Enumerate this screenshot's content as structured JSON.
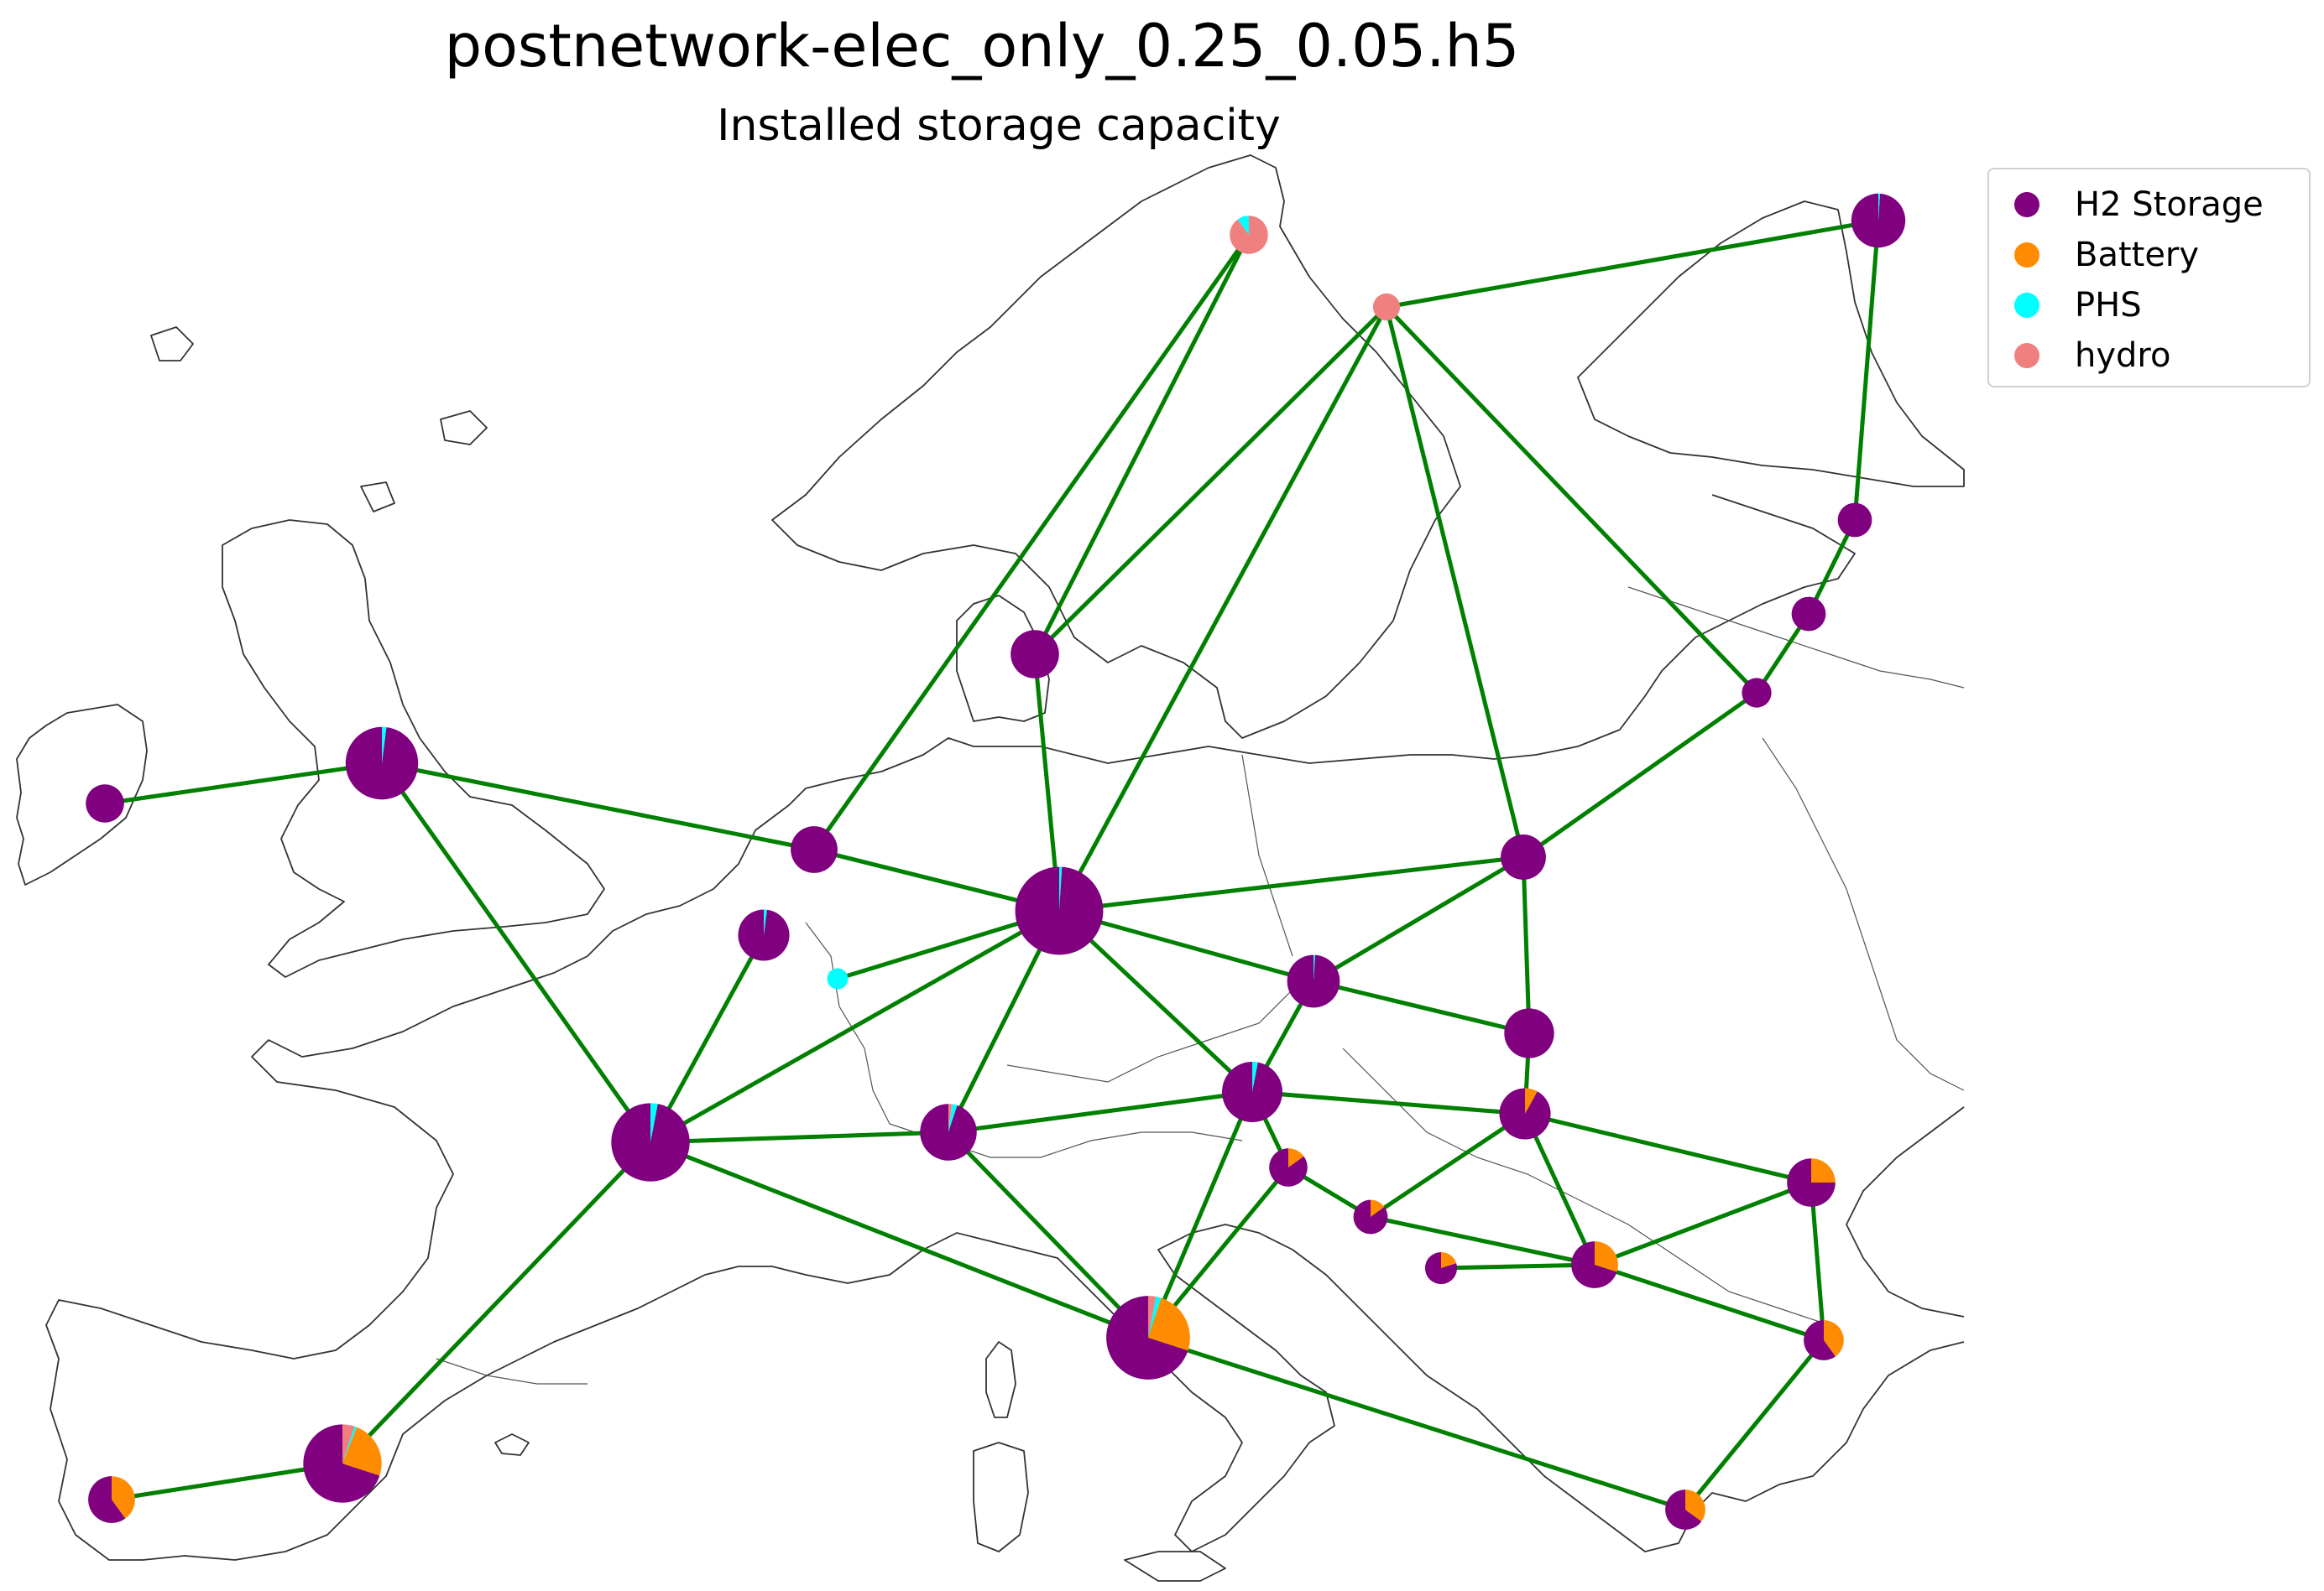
{
  "title": "postnetwork-elec_only_0.25_0.05.h5",
  "subtitle": "Installed storage capacity",
  "colors": {
    "h2": "#800080",
    "battery": "#FF8C00",
    "phs": "#00FFFF",
    "hydro": "#F08080",
    "line": "#008000",
    "coast": "#333333"
  },
  "legend": [
    {
      "label": "H2 Storage",
      "color": "#800080"
    },
    {
      "label": "Battery",
      "color": "#FF8C00"
    },
    {
      "label": "PHS",
      "color": "#00FFFF"
    },
    {
      "label": "hydro",
      "color": "#F08080"
    }
  ],
  "nodes": [
    {
      "id": "NO_N",
      "size": 0.1,
      "shares": {
        "h2": 0.0,
        "battery": 0.0,
        "phs": 0.1,
        "hydro": 0.9
      }
    },
    {
      "id": "SE",
      "size": 0.05,
      "shares": {
        "h2": 0.0,
        "battery": 0.0,
        "phs": 0.0,
        "hydro": 1.0
      }
    },
    {
      "id": "FI",
      "size": 0.2,
      "shares": {
        "h2": 0.99,
        "battery": 0.0,
        "phs": 0.01,
        "hydro": 0.0
      }
    },
    {
      "id": "EE",
      "size": 0.08,
      "shares": {
        "h2": 1.0,
        "battery": 0.0,
        "phs": 0.0,
        "hydro": 0.0
      }
    },
    {
      "id": "LV",
      "size": 0.08,
      "shares": {
        "h2": 1.0,
        "battery": 0.0,
        "phs": 0.0,
        "hydro": 0.0
      }
    },
    {
      "id": "LT",
      "size": 0.06,
      "shares": {
        "h2": 1.0,
        "battery": 0.0,
        "phs": 0.0,
        "hydro": 0.0
      }
    },
    {
      "id": "DK",
      "size": 0.16,
      "shares": {
        "h2": 1.0,
        "battery": 0.0,
        "phs": 0.0,
        "hydro": 0.0
      }
    },
    {
      "id": "IE",
      "size": 0.1,
      "shares": {
        "h2": 1.0,
        "battery": 0.0,
        "phs": 0.0,
        "hydro": 0.0
      }
    },
    {
      "id": "GB",
      "size": 0.36,
      "shares": {
        "h2": 0.98,
        "battery": 0.0,
        "phs": 0.02,
        "hydro": 0.0
      }
    },
    {
      "id": "NL",
      "size": 0.15,
      "shares": {
        "h2": 1.0,
        "battery": 0.0,
        "phs": 0.0,
        "hydro": 0.0
      }
    },
    {
      "id": "BE",
      "size": 0.18,
      "shares": {
        "h2": 0.98,
        "battery": 0.0,
        "phs": 0.02,
        "hydro": 0.0
      }
    },
    {
      "id": "LU",
      "size": 0.03,
      "shares": {
        "h2": 0.0,
        "battery": 0.0,
        "phs": 1.0,
        "hydro": 0.0
      }
    },
    {
      "id": "DE",
      "size": 0.53,
      "shares": {
        "h2": 0.99,
        "battery": 0.0,
        "phs": 0.01,
        "hydro": 0.0
      }
    },
    {
      "id": "PL",
      "size": 0.14,
      "shares": {
        "h2": 1.0,
        "battery": 0.0,
        "phs": 0.0,
        "hydro": 0.0
      }
    },
    {
      "id": "CZ",
      "size": 0.19,
      "shares": {
        "h2": 0.99,
        "battery": 0.0,
        "phs": 0.01,
        "hydro": 0.0
      }
    },
    {
      "id": "SK",
      "size": 0.17,
      "shares": {
        "h2": 1.0,
        "battery": 0.0,
        "phs": 0.0,
        "hydro": 0.0
      }
    },
    {
      "id": "AT",
      "size": 0.25,
      "shares": {
        "h2": 0.97,
        "battery": 0.0,
        "phs": 0.03,
        "hydro": 0.0
      }
    },
    {
      "id": "HU",
      "size": 0.18,
      "shares": {
        "h2": 0.92,
        "battery": 0.08,
        "phs": 0.0,
        "hydro": 0.0
      }
    },
    {
      "id": "FR",
      "size": 0.42,
      "shares": {
        "h2": 0.97,
        "battery": 0.0,
        "phs": 0.03,
        "hydro": 0.0
      }
    },
    {
      "id": "CH",
      "size": 0.22,
      "shares": {
        "h2": 0.95,
        "battery": 0.0,
        "phs": 0.03,
        "hydro": 0.02
      }
    },
    {
      "id": "SI",
      "size": 0.1,
      "shares": {
        "h2": 0.85,
        "battery": 0.15,
        "phs": 0.0,
        "hydro": 0.0
      }
    },
    {
      "id": "HR",
      "size": 0.08,
      "shares": {
        "h2": 0.85,
        "battery": 0.15,
        "phs": 0.0,
        "hydro": 0.0
      }
    },
    {
      "id": "BA",
      "size": 0.07,
      "shares": {
        "h2": 0.8,
        "battery": 0.2,
        "phs": 0.0,
        "hydro": 0.0
      }
    },
    {
      "id": "RS",
      "size": 0.15,
      "shares": {
        "h2": 0.7,
        "battery": 0.3,
        "phs": 0.0,
        "hydro": 0.0
      }
    },
    {
      "id": "RO",
      "size": 0.16,
      "shares": {
        "h2": 0.75,
        "battery": 0.25,
        "phs": 0.0,
        "hydro": 0.0
      }
    },
    {
      "id": "BG",
      "size": 0.11,
      "shares": {
        "h2": 0.6,
        "battery": 0.4,
        "phs": 0.0,
        "hydro": 0.0
      }
    },
    {
      "id": "GR",
      "size": 0.11,
      "shares": {
        "h2": 0.65,
        "battery": 0.35,
        "phs": 0.0,
        "hydro": 0.0
      }
    },
    {
      "id": "IT",
      "size": 0.48,
      "shares": {
        "h2": 0.7,
        "battery": 0.25,
        "phs": 0.02,
        "hydro": 0.03
      }
    },
    {
      "id": "ES",
      "size": 0.42,
      "shares": {
        "h2": 0.7,
        "battery": 0.24,
        "phs": 0.01,
        "hydro": 0.05
      }
    },
    {
      "id": "PT",
      "size": 0.15,
      "shares": {
        "h2": 0.6,
        "battery": 0.4,
        "phs": 0.0,
        "hydro": 0.0
      }
    }
  ],
  "links": [
    [
      "IE",
      "GB"
    ],
    [
      "GB",
      "NL"
    ],
    [
      "GB",
      "FR"
    ],
    [
      "NL",
      "DE"
    ],
    [
      "NL",
      "NO_N"
    ],
    [
      "NO_N",
      "DK"
    ],
    [
      "SE",
      "DK"
    ],
    [
      "SE",
      "DE"
    ],
    [
      "SE",
      "FI"
    ],
    [
      "SE",
      "PL"
    ],
    [
      "SE",
      "LT"
    ],
    [
      "FI",
      "EE"
    ],
    [
      "EE",
      "LV"
    ],
    [
      "LV",
      "LT"
    ],
    [
      "LT",
      "PL"
    ],
    [
      "DK",
      "DE"
    ],
    [
      "DE",
      "PL"
    ],
    [
      "DE",
      "CZ"
    ],
    [
      "DE",
      "AT"
    ],
    [
      "DE",
      "FR"
    ],
    [
      "DE",
      "CH"
    ],
    [
      "DE",
      "LU"
    ],
    [
      "BE",
      "FR"
    ],
    [
      "FR",
      "CH"
    ],
    [
      "FR",
      "IT"
    ],
    [
      "FR",
      "ES"
    ],
    [
      "ES",
      "PT"
    ],
    [
      "CH",
      "AT"
    ],
    [
      "CH",
      "IT"
    ],
    [
      "AT",
      "IT"
    ],
    [
      "AT",
      "HU"
    ],
    [
      "AT",
      "SI"
    ],
    [
      "CZ",
      "SK"
    ],
    [
      "CZ",
      "AT"
    ],
    [
      "PL",
      "CZ"
    ],
    [
      "PL",
      "SK"
    ],
    [
      "SK",
      "HU"
    ],
    [
      "HU",
      "RO"
    ],
    [
      "HU",
      "RS"
    ],
    [
      "HU",
      "HR"
    ],
    [
      "SI",
      "HR"
    ],
    [
      "SI",
      "IT"
    ],
    [
      "HR",
      "RS"
    ],
    [
      "BA",
      "RS"
    ],
    [
      "RS",
      "RO"
    ],
    [
      "RS",
      "BG"
    ],
    [
      "RO",
      "BG"
    ],
    [
      "BG",
      "GR"
    ],
    [
      "IT",
      "GR"
    ]
  ]
}
